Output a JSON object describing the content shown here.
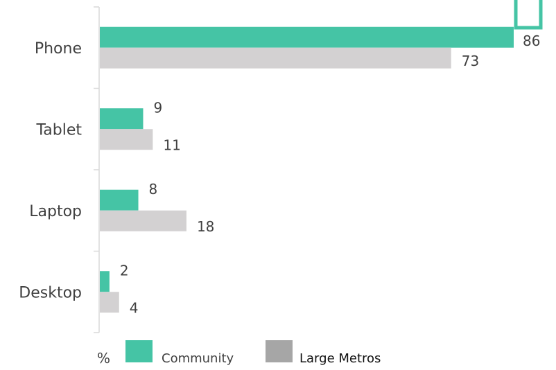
{
  "chart_data": {
    "type": "bar",
    "orientation": "horizontal",
    "categories": [
      "Phone",
      "Tablet",
      "Laptop",
      "Desktop"
    ],
    "series": [
      {
        "name": "Community",
        "values": [
          86,
          9,
          8,
          2
        ],
        "color": "#45c4a5"
      },
      {
        "name": "Large Metros",
        "values": [
          73,
          11,
          18,
          4
        ],
        "color": "#d3d1d2"
      }
    ],
    "unit_label": "%",
    "xlim": [
      0,
      86
    ],
    "grid": false,
    "legend_position": "bottom",
    "legend_colors": [
      "#45c4a5",
      "#a6a6a6"
    ]
  }
}
